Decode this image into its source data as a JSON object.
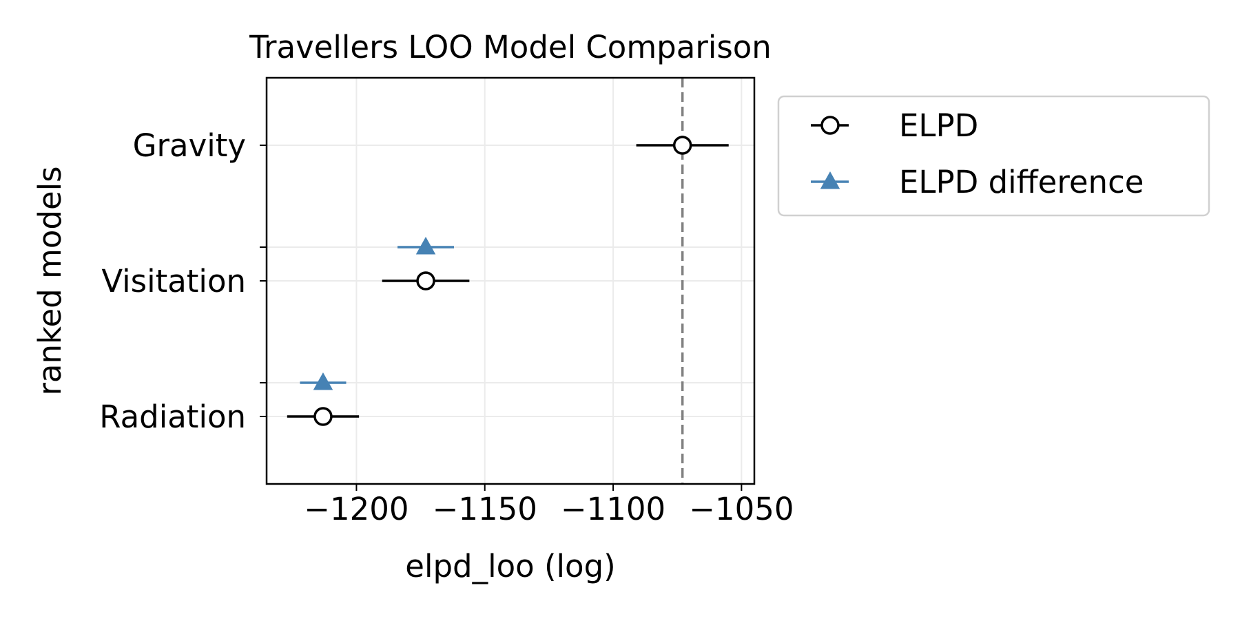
{
  "chart_data": {
    "type": "scatter",
    "title": "Travellers LOO Model Comparison",
    "xlabel": "elpd_loo (log)",
    "ylabel": "ranked models",
    "xlim": [
      -1235,
      -1045
    ],
    "xticks": [
      -1200,
      -1150,
      -1100,
      -1050
    ],
    "xtick_labels": [
      "−1200",
      "−1150",
      "−1100",
      "−1050"
    ],
    "models": [
      "Gravity",
      "Visitation",
      "Radiation"
    ],
    "grid": true,
    "reference_line": {
      "x": -1073,
      "style": "dashed",
      "color": "#808080"
    },
    "series": [
      {
        "name": "ELPD",
        "marker": "open-circle",
        "color": "#000000",
        "points": [
          {
            "model": "Gravity",
            "value": -1073,
            "lo": -1091,
            "hi": -1055
          },
          {
            "model": "Visitation",
            "value": -1173,
            "lo": -1190,
            "hi": -1156
          },
          {
            "model": "Radiation",
            "value": -1213,
            "lo": -1227,
            "hi": -1199
          }
        ]
      },
      {
        "name": "ELPD difference",
        "marker": "triangle",
        "color": "#4682b4",
        "points": [
          {
            "model": "Visitation",
            "value": -1173,
            "lo": -1184,
            "hi": -1162
          },
          {
            "model": "Radiation",
            "value": -1213,
            "lo": -1222,
            "hi": -1204
          }
        ]
      }
    ],
    "legend": {
      "position": "outside-right"
    }
  }
}
